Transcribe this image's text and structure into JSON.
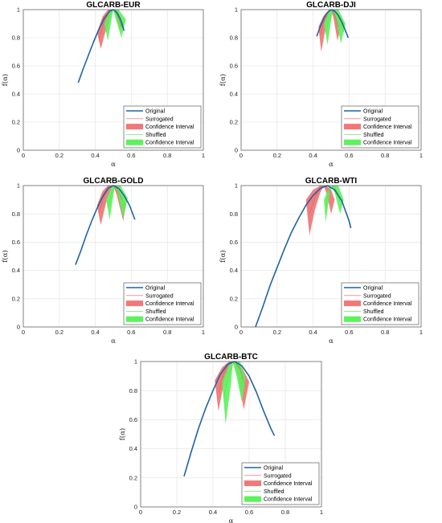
{
  "chart_data": [
    {
      "type": "line",
      "title": "GLCARB-EUR",
      "xlabel": "α",
      "ylabel": "f(α)",
      "xlim": [
        0,
        1
      ],
      "ylim": [
        0,
        1
      ],
      "xticks": [
        "0",
        "0.2",
        "0.4",
        "0.6",
        "0.8",
        "1"
      ],
      "yticks": [
        "0",
        "0.2",
        "0.4",
        "0.6",
        "0.8",
        "1"
      ],
      "grid": true,
      "legend_position": "bottom-right",
      "legend": [
        "Original",
        "Surrogated",
        "Confidence Interval",
        "Shuffled",
        "Confidence Interval"
      ],
      "series": [
        {
          "name": "Original",
          "x": [
            0.305,
            0.33,
            0.36,
            0.39,
            0.42,
            0.45,
            0.48,
            0.5,
            0.52,
            0.54,
            0.56
          ],
          "y": [
            0.48,
            0.57,
            0.67,
            0.77,
            0.86,
            0.94,
            0.99,
            1.0,
            0.98,
            0.93,
            0.85
          ]
        },
        {
          "name": "Surrogated",
          "x": [
            0.42,
            0.45,
            0.48,
            0.5,
            0.52,
            0.545
          ],
          "y": [
            0.78,
            0.92,
            0.99,
            1.0,
            0.97,
            0.88
          ]
        },
        {
          "name": "Confidence Interval",
          "upper_x": [
            0.41,
            0.44,
            0.47,
            0.5,
            0.53,
            0.56
          ],
          "upper_y": [
            0.84,
            0.95,
            1.0,
            1.0,
            0.96,
            0.9
          ],
          "lower_x": [
            0.43,
            0.46,
            0.485,
            0.5,
            0.515,
            0.535
          ],
          "lower_y": [
            0.72,
            0.86,
            0.97,
            1.0,
            0.95,
            0.85
          ]
        },
        {
          "name": "Shuffled",
          "x": [
            0.46,
            0.48,
            0.5,
            0.52,
            0.54,
            0.56
          ],
          "y": [
            0.84,
            0.96,
            1.0,
            0.99,
            0.94,
            0.87
          ]
        },
        {
          "name": "Confidence Interval",
          "upper_x": [
            0.45,
            0.48,
            0.5,
            0.53,
            0.57
          ],
          "upper_y": [
            0.9,
            0.99,
            1.0,
            1.0,
            0.93
          ],
          "lower_x": [
            0.47,
            0.49,
            0.5,
            0.51,
            0.545
          ],
          "lower_y": [
            0.78,
            0.93,
            1.0,
            0.95,
            0.8
          ]
        }
      ]
    },
    {
      "type": "line",
      "title": "GLCARB-DJI",
      "xlabel": "α",
      "ylabel": "f(α)",
      "xlim": [
        0,
        1
      ],
      "ylim": [
        0,
        1
      ],
      "xticks": [
        "0",
        "0.2",
        "0.4",
        "0.6",
        "0.8",
        "1"
      ],
      "yticks": [
        "0",
        "0.2",
        "0.4",
        "0.6",
        "0.8",
        "1"
      ],
      "grid": true,
      "legend_position": "bottom-right",
      "legend": [
        "Original",
        "Surrogated",
        "Confidence Interval",
        "Shuffled",
        "Confidence Interval"
      ],
      "series": [
        {
          "name": "Original",
          "x": [
            0.42,
            0.44,
            0.46,
            0.48,
            0.5,
            0.52,
            0.54,
            0.56,
            0.58,
            0.595
          ],
          "y": [
            0.81,
            0.88,
            0.94,
            0.98,
            1.0,
            0.99,
            0.96,
            0.91,
            0.85,
            0.8
          ]
        },
        {
          "name": "Surrogated",
          "x": [
            0.44,
            0.46,
            0.48,
            0.5,
            0.52,
            0.54
          ],
          "y": [
            0.82,
            0.92,
            0.98,
            1.0,
            0.97,
            0.88
          ]
        },
        {
          "name": "Confidence Interval",
          "upper_x": [
            0.43,
            0.46,
            0.49,
            0.51,
            0.53,
            0.555
          ],
          "upper_y": [
            0.88,
            0.96,
            1.0,
            1.0,
            0.97,
            0.88
          ],
          "lower_x": [
            0.445,
            0.47,
            0.49,
            0.5,
            0.515,
            0.535
          ],
          "lower_y": [
            0.7,
            0.87,
            0.96,
            1.0,
            0.93,
            0.78
          ]
        },
        {
          "name": "Shuffled",
          "x": [
            0.47,
            0.49,
            0.51,
            0.53,
            0.55,
            0.57
          ],
          "y": [
            0.83,
            0.94,
            1.0,
            0.98,
            0.92,
            0.84
          ]
        },
        {
          "name": "Confidence Interval",
          "upper_x": [
            0.46,
            0.49,
            0.51,
            0.54,
            0.58
          ],
          "upper_y": [
            0.9,
            0.99,
            1.0,
            1.0,
            0.9
          ],
          "lower_x": [
            0.48,
            0.5,
            0.51,
            0.525,
            0.555
          ],
          "lower_y": [
            0.75,
            0.92,
            1.0,
            0.94,
            0.76
          ]
        }
      ]
    },
    {
      "type": "line",
      "title": "GLCARB-GOLD",
      "xlabel": "α",
      "ylabel": "f(α)",
      "xlim": [
        0,
        1
      ],
      "ylim": [
        0,
        1
      ],
      "xticks": [
        "0",
        "0.2",
        "0.4",
        "0.6",
        "0.8",
        "1"
      ],
      "yticks": [
        "0",
        "0.2",
        "0.4",
        "0.6",
        "0.8",
        "1"
      ],
      "grid": true,
      "legend_position": "bottom-right",
      "legend": [
        "Original",
        "Surrogated",
        "Confidence Interval",
        "Shuffled",
        "Confidence Interval"
      ],
      "series": [
        {
          "name": "Original",
          "x": [
            0.29,
            0.32,
            0.35,
            0.38,
            0.41,
            0.44,
            0.47,
            0.5,
            0.53,
            0.56,
            0.59,
            0.62
          ],
          "y": [
            0.44,
            0.54,
            0.65,
            0.75,
            0.84,
            0.92,
            0.98,
            1.0,
            0.98,
            0.93,
            0.86,
            0.76
          ]
        },
        {
          "name": "Surrogated",
          "x": [
            0.42,
            0.45,
            0.48,
            0.5,
            0.52,
            0.55
          ],
          "y": [
            0.8,
            0.93,
            0.99,
            1.0,
            0.98,
            0.9
          ]
        },
        {
          "name": "Confidence Interval",
          "upper_x": [
            0.41,
            0.44,
            0.47,
            0.5,
            0.53,
            0.57
          ],
          "upper_y": [
            0.86,
            0.96,
            1.0,
            1.0,
            0.96,
            0.86
          ],
          "lower_x": [
            0.43,
            0.46,
            0.485,
            0.5,
            0.52,
            0.555
          ],
          "lower_y": [
            0.72,
            0.88,
            0.97,
            1.0,
            0.93,
            0.75
          ]
        },
        {
          "name": "Shuffled",
          "x": [
            0.47,
            0.49,
            0.51,
            0.53,
            0.55,
            0.57
          ],
          "y": [
            0.84,
            0.95,
            1.0,
            0.98,
            0.93,
            0.85
          ]
        },
        {
          "name": "Confidence Interval",
          "upper_x": [
            0.46,
            0.49,
            0.51,
            0.54,
            0.58
          ],
          "upper_y": [
            0.9,
            0.99,
            1.0,
            1.0,
            0.91
          ],
          "lower_x": [
            0.48,
            0.5,
            0.51,
            0.525,
            0.555
          ],
          "lower_y": [
            0.76,
            0.93,
            1.0,
            0.94,
            0.77
          ]
        }
      ]
    },
    {
      "type": "line",
      "title": "GLCARB-WTI",
      "xlabel": "α",
      "ylabel": "f(α)",
      "xlim": [
        0,
        1
      ],
      "ylim": [
        0,
        1
      ],
      "xticks": [
        "0",
        "0.2",
        "0.4",
        "0.6",
        "0.8",
        "1"
      ],
      "yticks": [
        "0",
        "0.2",
        "0.4",
        "0.6",
        "0.8",
        "1"
      ],
      "grid": true,
      "legend_position": "bottom-right",
      "legend": [
        "Original",
        "Surrogated",
        "Confidence Interval",
        "Shuffled",
        "Confidence Interval"
      ],
      "series": [
        {
          "name": "Original",
          "x": [
            0.08,
            0.12,
            0.16,
            0.2,
            0.24,
            0.28,
            0.32,
            0.36,
            0.4,
            0.44,
            0.48,
            0.52,
            0.56,
            0.6,
            0.61
          ],
          "y": [
            0.0,
            0.14,
            0.29,
            0.42,
            0.55,
            0.67,
            0.77,
            0.86,
            0.93,
            0.98,
            1.0,
            0.97,
            0.89,
            0.75,
            0.7
          ]
        },
        {
          "name": "Surrogated",
          "x": [
            0.38,
            0.41,
            0.44,
            0.47,
            0.5
          ],
          "y": [
            0.8,
            0.92,
            0.99,
            1.0,
            0.95
          ]
        },
        {
          "name": "Confidence Interval",
          "upper_x": [
            0.36,
            0.4,
            0.44,
            0.47,
            0.5,
            0.52
          ],
          "upper_y": [
            0.9,
            0.97,
            1.0,
            1.0,
            0.97,
            0.9
          ],
          "lower_x": [
            0.38,
            0.41,
            0.44,
            0.46,
            0.48,
            0.5
          ],
          "lower_y": [
            0.65,
            0.83,
            0.95,
            1.0,
            0.92,
            0.8
          ]
        },
        {
          "name": "Shuffled",
          "x": [
            0.47,
            0.49,
            0.51,
            0.53,
            0.55
          ],
          "y": [
            0.85,
            0.96,
            1.0,
            0.97,
            0.9
          ]
        },
        {
          "name": "Confidence Interval",
          "upper_x": [
            0.46,
            0.49,
            0.51,
            0.54,
            0.57
          ],
          "upper_y": [
            0.9,
            0.99,
            1.0,
            1.0,
            0.9
          ],
          "lower_x": [
            0.47,
            0.49,
            0.5,
            0.52,
            0.55
          ],
          "lower_y": [
            0.74,
            0.92,
            1.0,
            0.95,
            0.8
          ]
        }
      ]
    },
    {
      "type": "line",
      "title": "GLCARB-BTC",
      "xlabel": "α",
      "ylabel": "f(α)",
      "xlim": [
        0,
        1
      ],
      "ylim": [
        0,
        1
      ],
      "xticks": [
        "0",
        "0.2",
        "0.4",
        "0.6",
        "0.8",
        "1"
      ],
      "yticks": [
        "0",
        "0.2",
        "0.4",
        "0.6",
        "0.8",
        "1"
      ],
      "grid": true,
      "legend_position": "bottom-right",
      "legend": [
        "Original",
        "Surrogated",
        "Confidence Interval",
        "Shuffled",
        "Confidence Interval"
      ],
      "series": [
        {
          "name": "Original",
          "x": [
            0.24,
            0.28,
            0.32,
            0.36,
            0.4,
            0.44,
            0.48,
            0.52,
            0.56,
            0.6,
            0.64,
            0.68,
            0.72,
            0.74
          ],
          "y": [
            0.21,
            0.38,
            0.54,
            0.68,
            0.8,
            0.91,
            0.98,
            1.0,
            0.97,
            0.9,
            0.79,
            0.66,
            0.54,
            0.49
          ]
        },
        {
          "name": "Surrogated",
          "x": [
            0.43,
            0.46,
            0.49,
            0.52,
            0.55,
            0.58
          ],
          "y": [
            0.78,
            0.92,
            0.99,
            1.0,
            0.95,
            0.82
          ]
        },
        {
          "name": "Confidence Interval",
          "upper_x": [
            0.41,
            0.45,
            0.49,
            0.52,
            0.56,
            0.6
          ],
          "upper_y": [
            0.87,
            0.96,
            1.0,
            1.0,
            0.96,
            0.86
          ],
          "lower_x": [
            0.43,
            0.46,
            0.49,
            0.51,
            0.54,
            0.57
          ],
          "lower_y": [
            0.66,
            0.85,
            0.96,
            1.0,
            0.9,
            0.67
          ]
        },
        {
          "name": "Shuffled",
          "x": [
            0.46,
            0.49,
            0.52,
            0.55,
            0.58
          ],
          "y": [
            0.76,
            0.93,
            1.0,
            0.96,
            0.82
          ]
        },
        {
          "name": "Confidence Interval",
          "upper_x": [
            0.45,
            0.49,
            0.52,
            0.55,
            0.58
          ],
          "upper_y": [
            0.86,
            0.98,
            1.0,
            1.0,
            0.88
          ],
          "lower_x": [
            0.47,
            0.5,
            0.51,
            0.53,
            0.56
          ],
          "lower_y": [
            0.57,
            0.85,
            1.0,
            0.9,
            0.72
          ]
        }
      ]
    }
  ],
  "colors": {
    "original": "#1f63a6",
    "surrogated": "#e85a5a",
    "surrogated_ci": "#f07878",
    "shuffled": "#52e052",
    "shuffled_ci": "#5cf25c",
    "grid": "#e2e2e2",
    "axis": "#555555"
  }
}
